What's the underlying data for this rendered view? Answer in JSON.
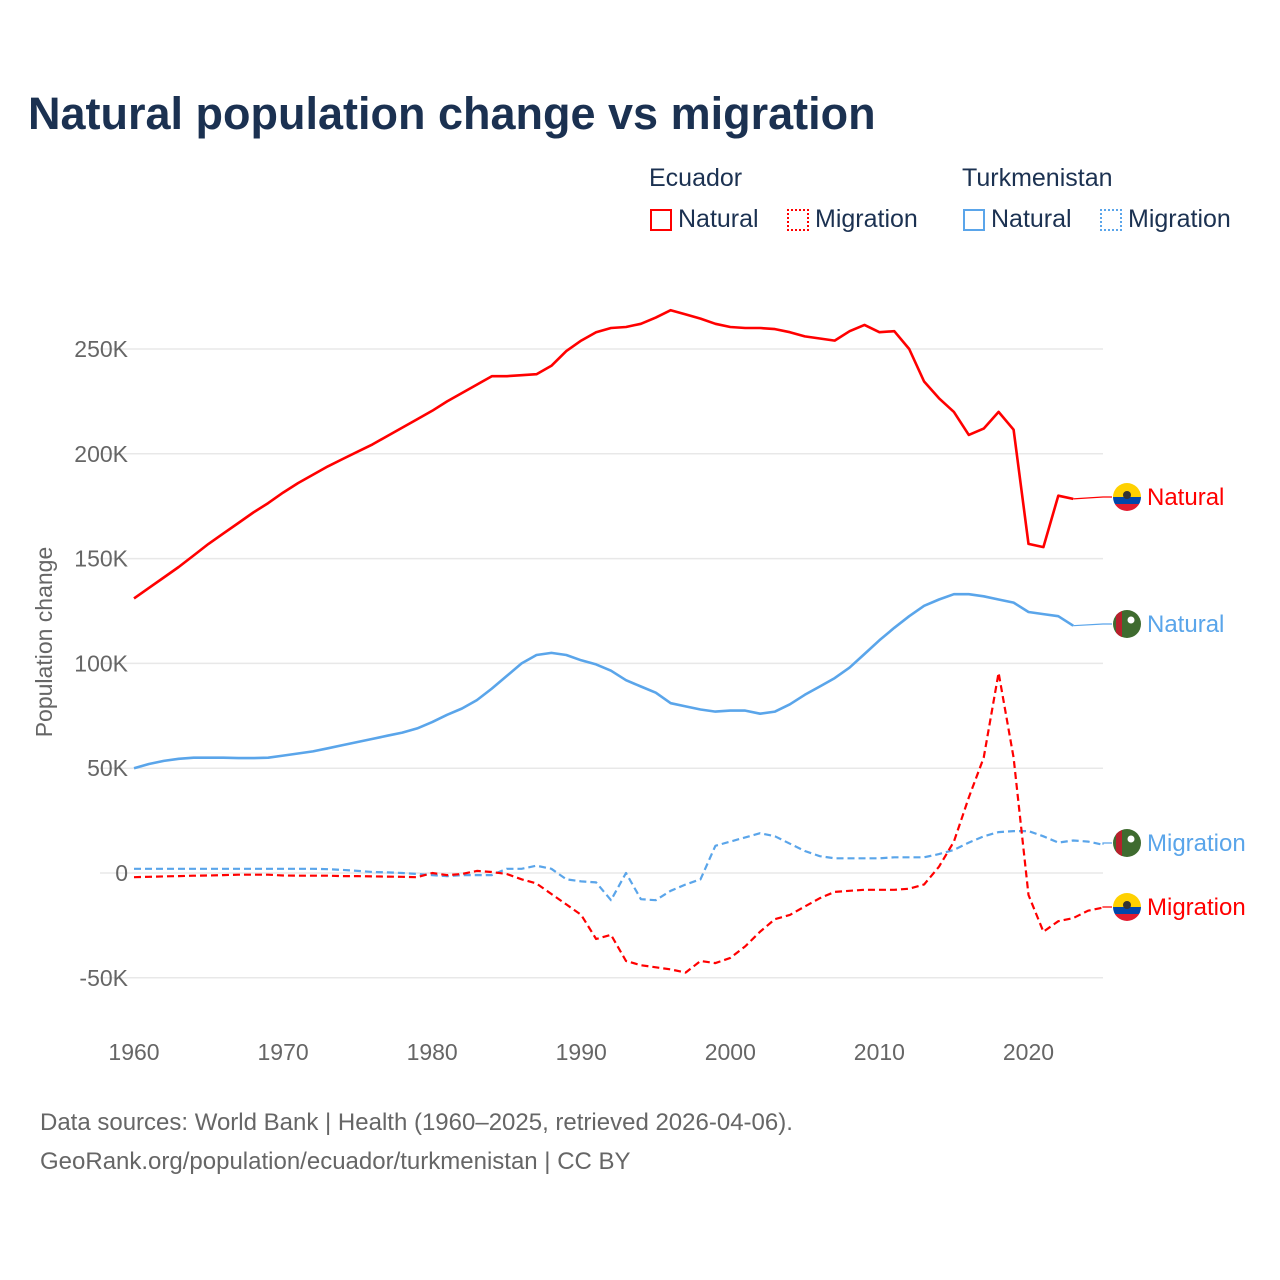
{
  "title": "Natural population change vs migration",
  "legend": {
    "groups": [
      {
        "name": "Ecuador",
        "items": [
          "Natural",
          "Migration"
        ],
        "color": "#ff0000"
      },
      {
        "name": "Turkmenistan",
        "items": [
          "Natural",
          "Migration"
        ],
        "color": "#5aa5ea"
      }
    ]
  },
  "footer": {
    "line1": "Data sources: World Bank | Health (1960–2025, retrieved 2026-04-06).",
    "line2": "GeoRank.org/population/ecuador/turkmenistan | CC BY"
  },
  "chart_data": {
    "type": "line",
    "title": "Natural population change vs migration",
    "xlabel": "",
    "ylabel": "Population change",
    "xlim": [
      1960,
      2025
    ],
    "ylim": [
      -70000,
      280000
    ],
    "yticks": [
      -50000,
      0,
      50000,
      100000,
      150000,
      200000,
      250000
    ],
    "ytick_labels": [
      "-50K",
      "0",
      "50K",
      "100K",
      "150K",
      "200K",
      "250K"
    ],
    "xticks": [
      1960,
      1970,
      1980,
      1990,
      2000,
      2010,
      2020
    ],
    "xtick_labels": [
      "1960",
      "1970",
      "1980",
      "1990",
      "2000",
      "2010",
      "2020"
    ],
    "grid": true,
    "x_start": 1960,
    "series": [
      {
        "name": "Ecuador Natural",
        "end_label": "Natural",
        "color": "#ff0000",
        "dash": false,
        "flag": "ecuador",
        "values": [
          131,
          136,
          141,
          146,
          151.5,
          157,
          162,
          167,
          172,
          176.5,
          181.5,
          186,
          190,
          194,
          197.5,
          201,
          204.5,
          208.5,
          212.5,
          216.5,
          220.5,
          225,
          229,
          233,
          237,
          237,
          237.5,
          238,
          242,
          249,
          254,
          258,
          260,
          260.5,
          262,
          265,
          268.5,
          266.5,
          264.5,
          262,
          260.5,
          260,
          260,
          259.5,
          258,
          256,
          255,
          254,
          258.5,
          261.5,
          258,
          258.5,
          250,
          234.5,
          226.5,
          220,
          209,
          212,
          220,
          211.5,
          157,
          155.5,
          180,
          178.5
        ]
      },
      {
        "name": "Turkmenistan Natural",
        "end_label": "Natural",
        "color": "#5aa5ea",
        "dash": false,
        "flag": "turkmenistan",
        "values": [
          50,
          52,
          53.5,
          54.5,
          55,
          55,
          55,
          54.8,
          54.8,
          55,
          56,
          57,
          58,
          59.5,
          61,
          62.5,
          64,
          65.5,
          67,
          69,
          72,
          75.5,
          78.5,
          82.5,
          88,
          94,
          100,
          104,
          105,
          104,
          101.5,
          99.5,
          96.5,
          92,
          89,
          86,
          81,
          79.5,
          78,
          77,
          77.5,
          77.5,
          76,
          77,
          80.5,
          85,
          89,
          93,
          98,
          104.5,
          111,
          117,
          122.5,
          127.5,
          130.5,
          133,
          133,
          132,
          130.5,
          129,
          124.5,
          123.5,
          122.5,
          118
        ]
      },
      {
        "name": "Turkmenistan Migration",
        "end_label": "Migration",
        "color": "#5aa5ea",
        "dash": true,
        "flag": "turkmenistan",
        "values": [
          2,
          2,
          2,
          2,
          2,
          2,
          2,
          2,
          2,
          2,
          2,
          2,
          2,
          1.8,
          1.5,
          1,
          0.5,
          0.3,
          0,
          -0.5,
          -1,
          -1.5,
          -1,
          -1,
          -1,
          2,
          2,
          3.5,
          2,
          -3,
          -4,
          -4.5,
          -13,
          0,
          -12.5,
          -13,
          -8.5,
          -5.5,
          -3,
          13,
          15,
          17,
          19,
          17.5,
          14,
          10.5,
          8,
          7,
          7,
          7,
          7,
          7.5,
          7.5,
          7.5,
          9,
          11,
          14.5,
          17.5,
          19.5,
          20,
          20,
          17.5,
          14.5,
          15.5,
          15,
          13.5
        ]
      },
      {
        "name": "Ecuador Migration",
        "end_label": "Migration",
        "color": "#ff0000",
        "dash": true,
        "flag": "ecuador",
        "values": [
          -2,
          -1.8,
          -1.6,
          -1.5,
          -1.3,
          -1.2,
          -1,
          -0.8,
          -0.8,
          -0.8,
          -1.2,
          -1.3,
          -1.3,
          -1.3,
          -1.5,
          -1.5,
          -1.6,
          -1.7,
          -1.8,
          -2,
          0,
          -1,
          -0.5,
          1,
          0.5,
          -0.5,
          -3,
          -5,
          -10,
          -15,
          -20,
          -31.5,
          -29.5,
          -42,
          -44,
          -45,
          -46,
          -47.5,
          -42,
          -43,
          -40.5,
          -35,
          -28,
          -22,
          -20,
          -16,
          -12,
          -9,
          -8.5,
          -8,
          -8,
          -8,
          -7.5,
          -5.5,
          3,
          15,
          36,
          55,
          95.5,
          55,
          -10.5,
          -28,
          -23,
          -21.5,
          -18,
          -16.5
        ]
      }
    ],
    "value_unit": "thousands"
  }
}
